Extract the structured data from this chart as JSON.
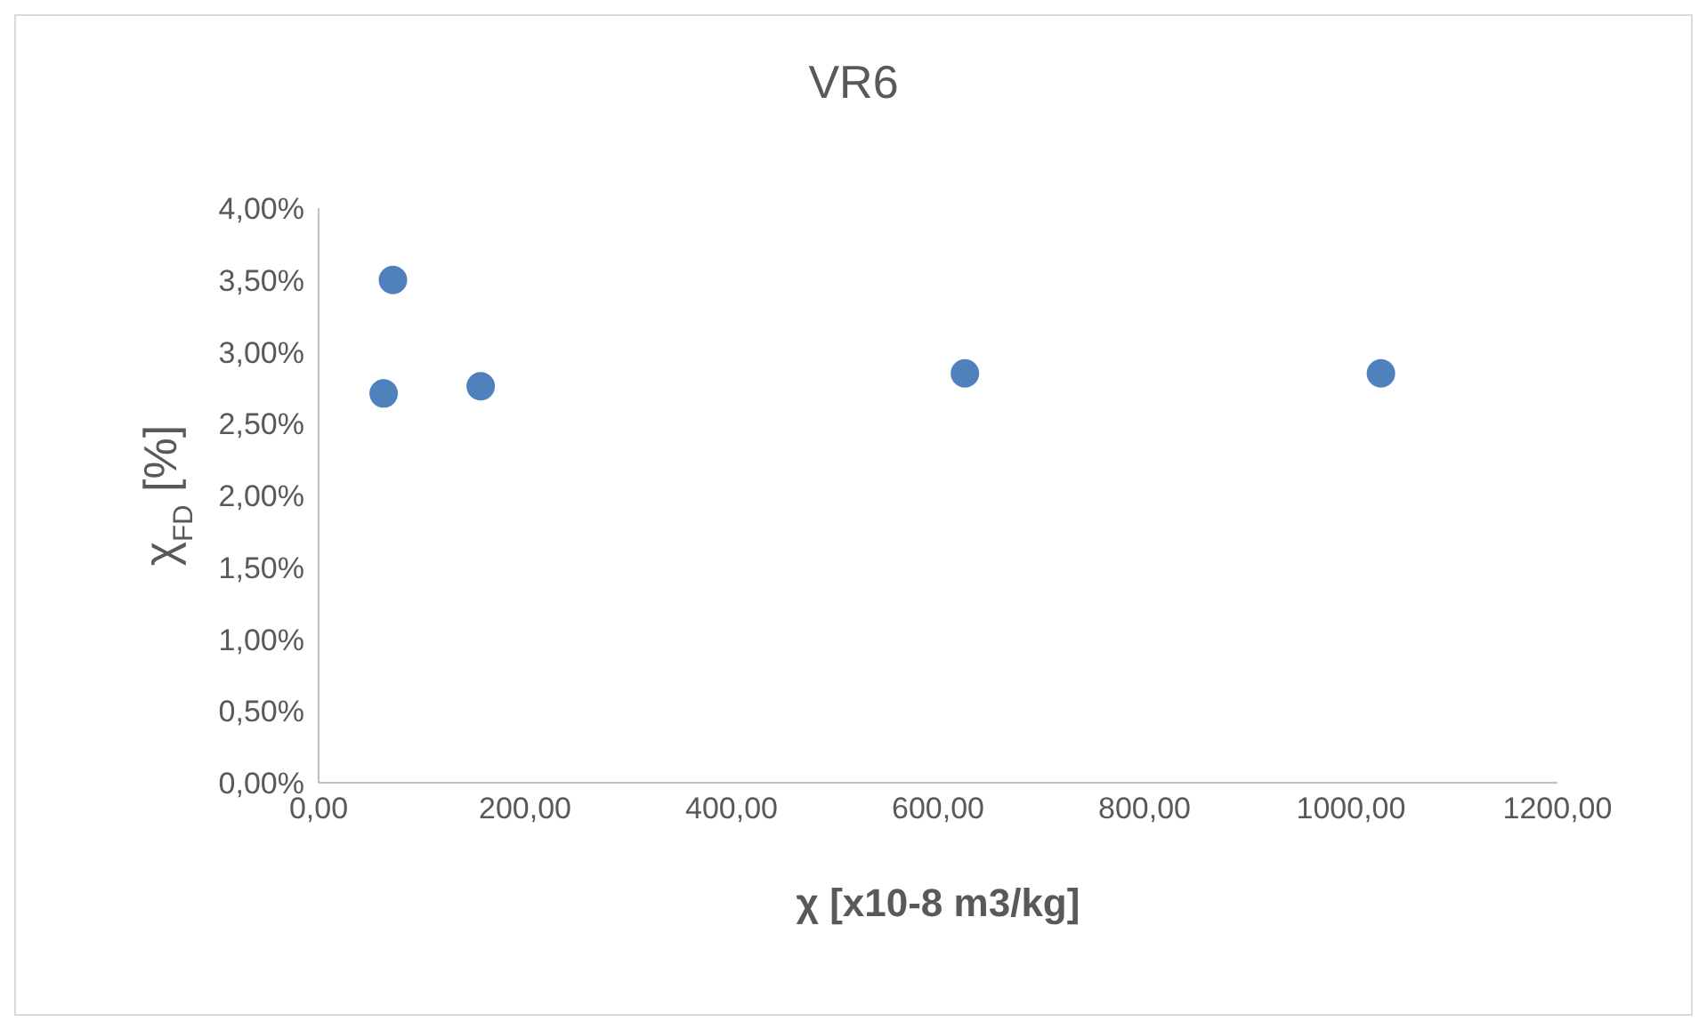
{
  "chart_data": {
    "type": "scatter",
    "title": "VR6",
    "xlabel": "χ [x10-8 m3/kg]",
    "ylabel": "χ$_{FD}$ [%]",
    "x": [
      63,
      72,
      157,
      626,
      1029
    ],
    "series": [
      {
        "color": "#4f81bd",
        "values": [
          2.71,
          3.5,
          2.76,
          2.85,
          2.85
        ]
      }
    ],
    "xlim": [
      0,
      1200
    ],
    "xticks": [
      {
        "value": 0,
        "label": "0,00"
      },
      {
        "value": 200,
        "label": "200,00"
      },
      {
        "value": 400,
        "label": "400,00"
      },
      {
        "value": 600,
        "label": "600,00"
      },
      {
        "value": 800,
        "label": "800,00"
      },
      {
        "value": 1000,
        "label": "1000,00"
      },
      {
        "value": 1200,
        "label": "1200,00"
      }
    ],
    "ylim": [
      0,
      4
    ],
    "yticks": [
      {
        "value": 0,
        "label": "0,00%"
      },
      {
        "value": 0.5,
        "label": "0,50%"
      },
      {
        "value": 1,
        "label": "1,00%"
      },
      {
        "value": 1.5,
        "label": "1,50%"
      },
      {
        "value": 2,
        "label": "2,00%"
      },
      {
        "value": 2.5,
        "label": "2,50%"
      },
      {
        "value": 3,
        "label": "3,00%"
      },
      {
        "value": 3.5,
        "label": "3,50%"
      },
      {
        "value": 4,
        "label": "4,00%"
      }
    ],
    "grid": false,
    "legend": false,
    "marker": "circle"
  }
}
